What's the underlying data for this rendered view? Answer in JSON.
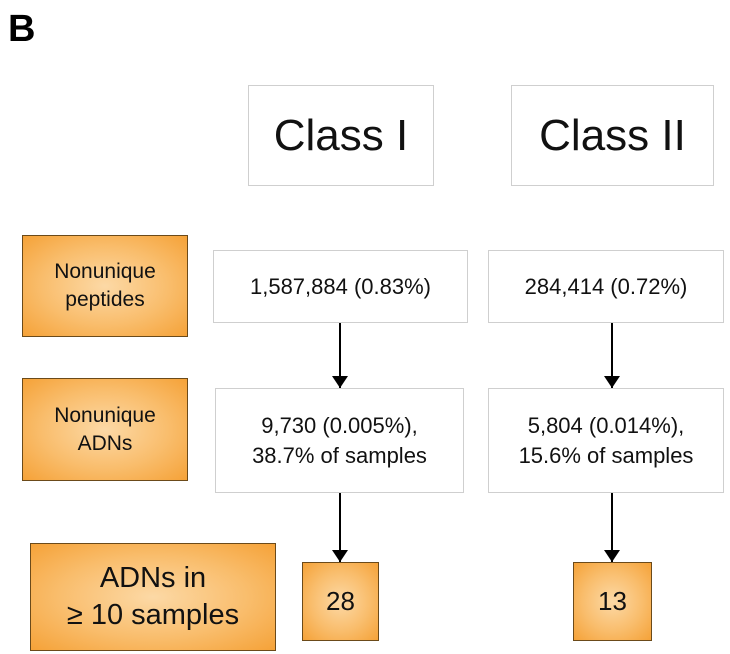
{
  "panel_label": "B",
  "columns": [
    "Class I",
    "Class II"
  ],
  "rows": [
    {
      "label": [
        "Nonunique",
        "peptides"
      ],
      "cells": [
        [
          "1,587,884 (0.83%)"
        ],
        [
          "284,414 (0.72%)"
        ]
      ]
    },
    {
      "label": [
        "Nonunique",
        "ADNs"
      ],
      "cells": [
        [
          "9,730 (0.005%),",
          "38.7% of samples"
        ],
        [
          "5,804 (0.014%),",
          "15.6% of samples"
        ]
      ]
    },
    {
      "label": [
        "ADNs in",
        "≥ 10 samples"
      ],
      "cells": [
        [
          "28"
        ],
        [
          "13"
        ]
      ]
    }
  ]
}
